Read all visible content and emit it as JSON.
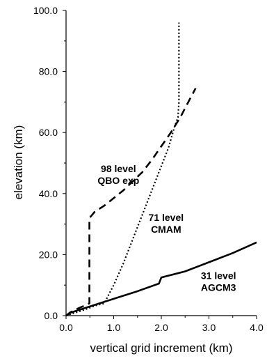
{
  "chart_data": {
    "type": "line",
    "xlabel": "vertical grid increment (km)",
    "ylabel": "elevation (km)",
    "xlim": [
      0.0,
      4.0
    ],
    "ylim": [
      0.0,
      100.0
    ],
    "xticks": [
      "0.0",
      "1.0",
      "2.0",
      "3.0",
      "4.0"
    ],
    "yticks": [
      "0.0",
      "20.0",
      "40.0",
      "60.0",
      "80.0",
      "100.0"
    ],
    "grid": false,
    "legend": "none",
    "series": [
      {
        "name": "98 level QBO exp",
        "line_style": "dashed",
        "x": [
          0.0,
          0.08,
          0.2,
          0.35,
          0.49,
          0.49,
          0.52,
          0.6,
          0.8,
          1.0,
          1.2,
          1.4,
          1.6,
          1.8,
          2.0,
          2.2,
          2.4,
          2.55,
          2.72
        ],
        "y": [
          0.0,
          1.0,
          2.0,
          3.0,
          4.0,
          32.0,
          32.5,
          34.0,
          36.0,
          38.5,
          41.0,
          44.0,
          47.0,
          51.0,
          55.5,
          60.0,
          65.0,
          69.5,
          74.5
        ]
      },
      {
        "name": "71 level CMAM",
        "line_style": "dotted",
        "x": [
          0.0,
          0.2,
          0.4,
          0.6,
          0.75,
          0.8,
          1.0,
          1.2,
          1.4,
          1.6,
          1.8,
          2.0,
          2.15,
          2.28,
          2.35,
          2.37,
          2.37
        ],
        "y": [
          0.0,
          1.0,
          2.0,
          3.2,
          3.8,
          4.0,
          10.0,
          17.0,
          25.0,
          33.0,
          41.0,
          49.0,
          55.0,
          62.0,
          65.0,
          70.0,
          96.0
        ]
      },
      {
        "name": "31 level AGCM3",
        "line_style": "solid",
        "x": [
          0.0,
          0.1,
          0.3,
          0.6,
          1.0,
          1.5,
          1.95,
          2.0,
          2.5,
          3.0,
          3.5,
          4.0
        ],
        "y": [
          0.0,
          1.0,
          2.0,
          3.5,
          5.5,
          8.0,
          10.5,
          12.5,
          14.5,
          17.5,
          20.5,
          24.0
        ]
      }
    ],
    "annotations": [
      {
        "lines": [
          "98 level",
          "QBO exp"
        ],
        "x": 1.1,
        "y": 47.0
      },
      {
        "lines": [
          "71 level",
          "CMAM"
        ],
        "x": 2.1,
        "y": 31.0
      },
      {
        "lines": [
          "31 level",
          "AGCM3"
        ],
        "x": 3.2,
        "y": 12.0
      }
    ]
  }
}
